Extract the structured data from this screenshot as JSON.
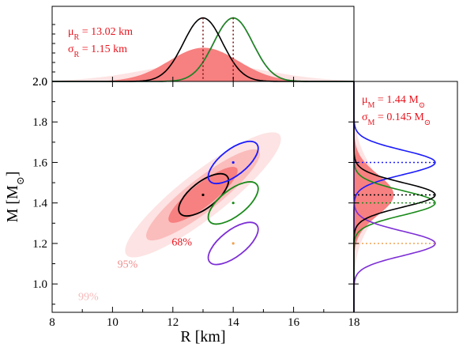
{
  "chart_data": {
    "type": "scatter",
    "xlabel": "R [km]",
    "ylabel": "M [M",
    "ylabel_sub": "⊙",
    "xticks": [
      "8",
      "10",
      "12",
      "14",
      "16",
      "18"
    ],
    "yticks": [
      "1.0",
      "1.2",
      "1.4",
      "1.6",
      "1.8",
      "2.0"
    ],
    "xlim": [
      8,
      18
    ],
    "ylim": [
      0.86,
      2.0
    ],
    "colors": {
      "ci99": "#fde3e3",
      "ci95": "#fbbcbc",
      "ci68": "#f78080",
      "black": "#000000",
      "blue": "#1a1aff",
      "green": "#1a8a1a",
      "purple": "#7d2fd6",
      "orange": "#f0a050",
      "annot": "#e8141e"
    },
    "confidence_labels": [
      {
        "text": "68%",
        "x": 12.3,
        "y": 1.19,
        "color": "#e8141e"
      },
      {
        "text": "95%",
        "x": 10.5,
        "y": 1.08,
        "color": "#f08a8a"
      },
      {
        "text": "99%",
        "x": 9.2,
        "y": 0.92,
        "color": "#f6b8b8"
      }
    ],
    "regions": [
      {
        "name": "99%",
        "cx": 13.0,
        "cy": 1.44,
        "rx": 5.2,
        "ry": 0.07,
        "angle": 38,
        "color": "#fde3e3"
      },
      {
        "name": "95%",
        "cx": 13.0,
        "cy": 1.44,
        "rx": 3.8,
        "ry": 0.05,
        "angle": 38,
        "color": "#fbbcbc"
      },
      {
        "name": "68%",
        "cx": 13.0,
        "cy": 1.44,
        "rx": 2.3,
        "ry": 0.035,
        "angle": 38,
        "color": "#f78080"
      }
    ],
    "series": [
      {
        "color": "#000000",
        "center": [
          13.02,
          1.44
        ],
        "rx": 1.6,
        "ry": 0.04,
        "angle": 38,
        "point": [
          13.0,
          1.44
        ]
      },
      {
        "color": "#1a1aff",
        "center": [
          14.0,
          1.6
        ],
        "rx": 1.6,
        "ry": 0.04,
        "angle": 38,
        "point": [
          14.0,
          1.6
        ]
      },
      {
        "color": "#1a8a1a",
        "center": [
          14.0,
          1.4
        ],
        "rx": 1.6,
        "ry": 0.04,
        "angle": 38,
        "point": [
          14.0,
          1.4
        ]
      },
      {
        "color": "#7d2fd6",
        "center": [
          14.0,
          1.2
        ],
        "rx": 1.6,
        "ry": 0.04,
        "angle": 38,
        "point": [
          14.0,
          1.2
        ]
      }
    ],
    "top_panel": {
      "mu_text": "μ",
      "mu_sub": "R",
      "mu_value": " = 13.02 km",
      "sigma_text": "σ",
      "sigma_sub": "R",
      "sigma_value": " = 1.15 km"
    },
    "right_panel": {
      "mu_text": "μ",
      "mu_sub": "M",
      "mu_value": " = 1.44 M",
      "mu_unit_sub": "⊙",
      "sigma_text": "σ",
      "sigma_sub": "M",
      "sigma_value": " = 0.145 M",
      "sigma_unit_sub": "⊙"
    }
  }
}
